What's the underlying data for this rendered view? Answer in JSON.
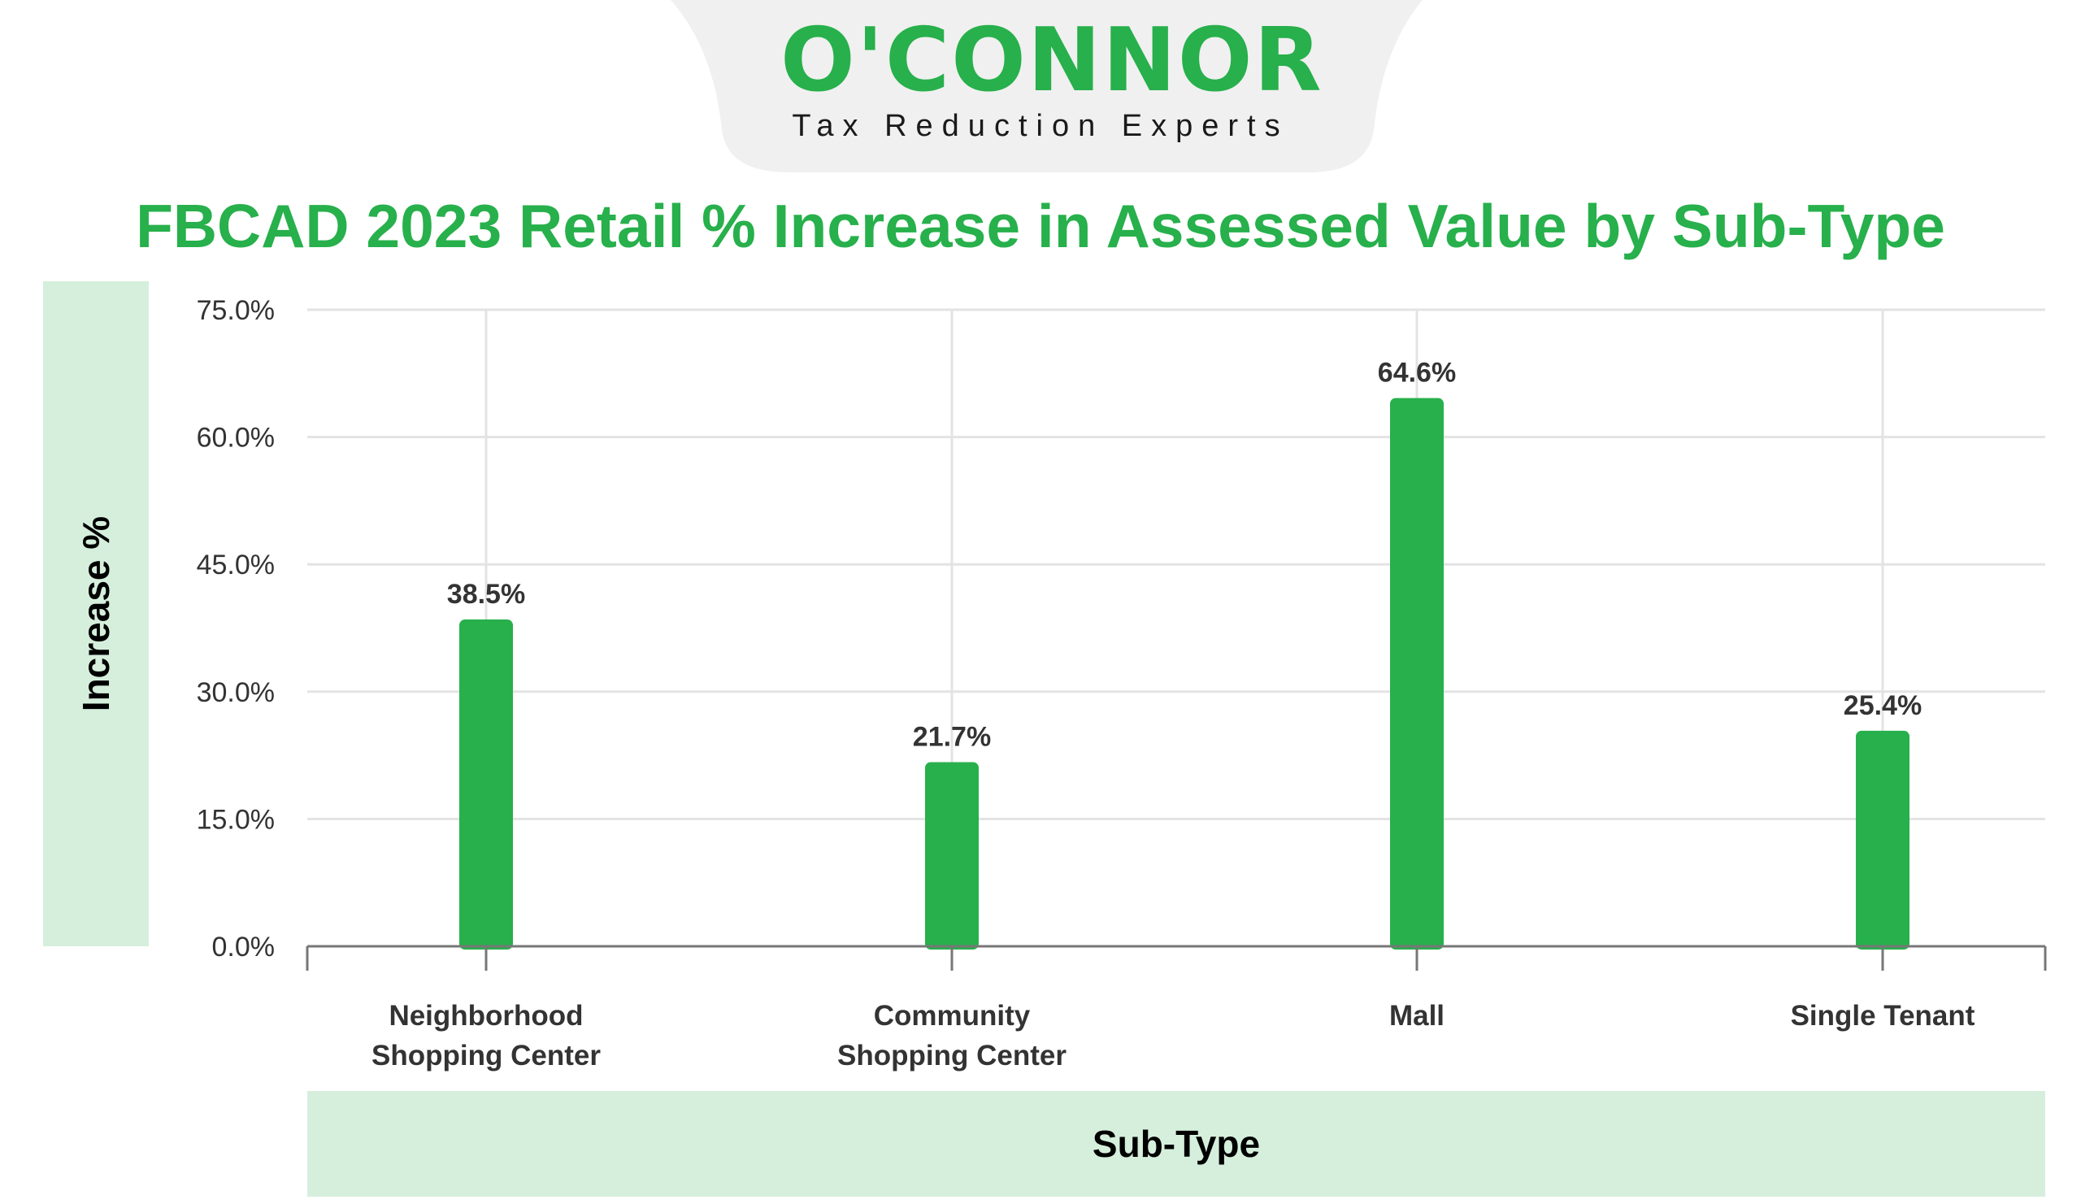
{
  "brand": {
    "name": "O'CONNOR",
    "tagline": "Tax Reduction Experts",
    "color": "#27b04b",
    "badge_bg": "#f0f0f0"
  },
  "chart_data": {
    "type": "bar",
    "title": "FBCAD 2023 Retail % Increase in Assessed Value by Sub-Type",
    "xlabel": "Sub-Type",
    "ylabel": "Increase %",
    "categories": [
      [
        "Neighborhood",
        "Shopping Center"
      ],
      [
        "Community",
        "Shopping Center"
      ],
      [
        "Mall"
      ],
      [
        "Single Tenant"
      ]
    ],
    "values": [
      38.5,
      21.7,
      64.6,
      25.4
    ],
    "value_labels": [
      "38.5%",
      "21.7%",
      "64.6%",
      "25.4%"
    ],
    "ylim": [
      0,
      75
    ],
    "yticks": [
      "0.0%",
      "15.0%",
      "30.0%",
      "45.0%",
      "60.0%",
      "75.0%"
    ],
    "grid": true,
    "bar_color": "#27b04b",
    "label_panel_color": "#d5efdc"
  }
}
